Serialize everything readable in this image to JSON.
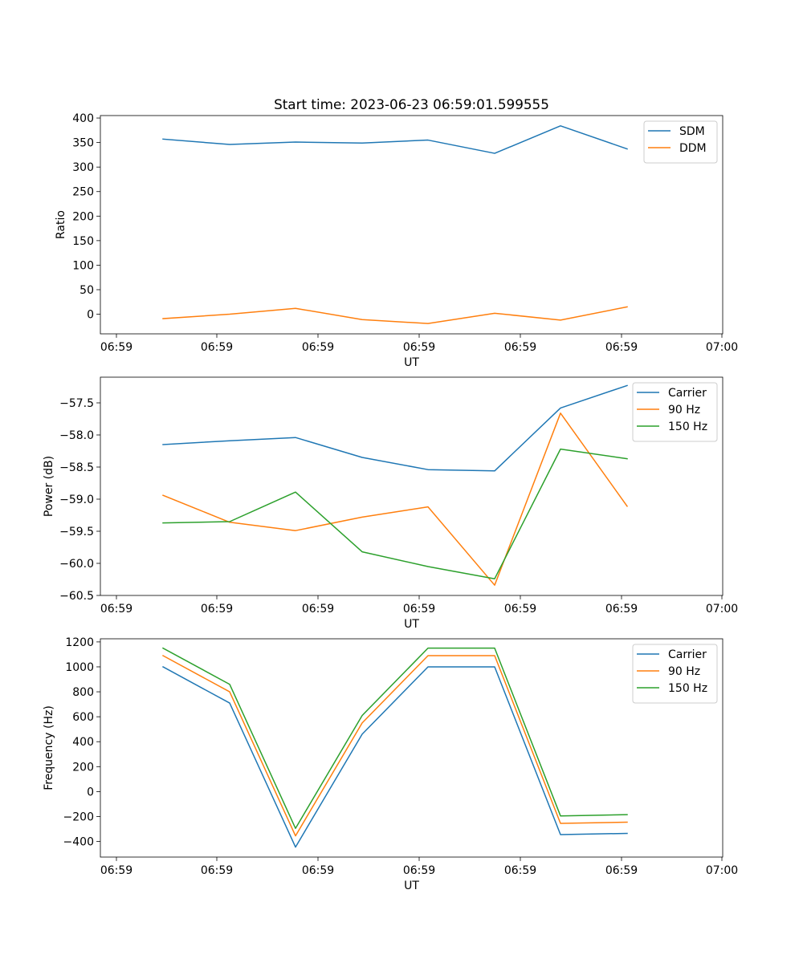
{
  "title": "Start time: 2023-06-23 06:59:01.599555",
  "colors": {
    "blue": "#1f77b4",
    "orange": "#ff7f0e",
    "green": "#2ca02c"
  },
  "chart_data": [
    {
      "type": "line",
      "title": "Start time: 2023-06-23 06:59:01.599555",
      "xlabel": "UT",
      "ylabel": "Ratio",
      "xtick_labels": [
        "06:59",
        "06:59",
        "06:59",
        "06:59",
        "06:59",
        "06:59",
        "07:00"
      ],
      "yticks": [
        0,
        50,
        100,
        150,
        200,
        250,
        300,
        350,
        400
      ],
      "ylim": [
        -40,
        405
      ],
      "legend": "top-right",
      "grid": false,
      "series": [
        {
          "name": "SDM",
          "color": "#1f77b4",
          "values": [
            357,
            346,
            351,
            349,
            355,
            328,
            384,
            337
          ]
        },
        {
          "name": "DDM",
          "color": "#ff7f0e",
          "values": [
            -9,
            0,
            12,
            -11,
            -19,
            2,
            -12,
            15
          ]
        }
      ]
    },
    {
      "type": "line",
      "xlabel": "UT",
      "ylabel": "Power (dB)",
      "xtick_labels": [
        "06:59",
        "06:59",
        "06:59",
        "06:59",
        "06:59",
        "06:59",
        "07:00"
      ],
      "yticks": [
        -60.5,
        -60.0,
        -59.5,
        -59.0,
        -58.5,
        -58.0,
        -57.5
      ],
      "ytick_labels": [
        "−60.5",
        "−60.0",
        "−59.5",
        "−59.0",
        "−58.5",
        "−58.0",
        "−57.5"
      ],
      "ylim": [
        -60.5,
        -57.1
      ],
      "legend": "top-right",
      "grid": false,
      "series": [
        {
          "name": "Carrier",
          "color": "#1f77b4",
          "values": [
            -58.15,
            -58.09,
            -58.04,
            -58.35,
            -58.54,
            -58.56,
            -57.58,
            -57.23
          ]
        },
        {
          "name": "90 Hz",
          "color": "#ff7f0e",
          "values": [
            -58.94,
            -59.36,
            -59.49,
            -59.28,
            -59.12,
            -60.34,
            -57.66,
            -59.11
          ]
        },
        {
          "name": "150 Hz",
          "color": "#2ca02c",
          "values": [
            -59.37,
            -59.35,
            -58.89,
            -59.82,
            -60.05,
            -60.24,
            -58.22,
            -58.37
          ]
        }
      ]
    },
    {
      "type": "line",
      "xlabel": "UT",
      "ylabel": "Frequency (Hz)",
      "xtick_labels": [
        "06:59",
        "06:59",
        "06:59",
        "06:59",
        "06:59",
        "06:59",
        "07:00"
      ],
      "yticks": [
        -400,
        -200,
        0,
        200,
        400,
        600,
        800,
        1000,
        1200
      ],
      "ytick_labels": [
        "−400",
        "−200",
        "0",
        "200",
        "400",
        "600",
        "800",
        "1000",
        "1200"
      ],
      "ylim": [
        -525,
        1225
      ],
      "legend": "top-right",
      "grid": false,
      "series": [
        {
          "name": "Carrier",
          "color": "#1f77b4",
          "values": [
            1000,
            710,
            -445,
            460,
            1000,
            1000,
            -345,
            -335
          ]
        },
        {
          "name": "90 Hz",
          "color": "#ff7f0e",
          "values": [
            1090,
            800,
            -355,
            550,
            1090,
            1090,
            -255,
            -245
          ]
        },
        {
          "name": "150 Hz",
          "color": "#2ca02c",
          "values": [
            1150,
            860,
            -295,
            610,
            1150,
            1150,
            -195,
            -185
          ]
        }
      ]
    }
  ]
}
